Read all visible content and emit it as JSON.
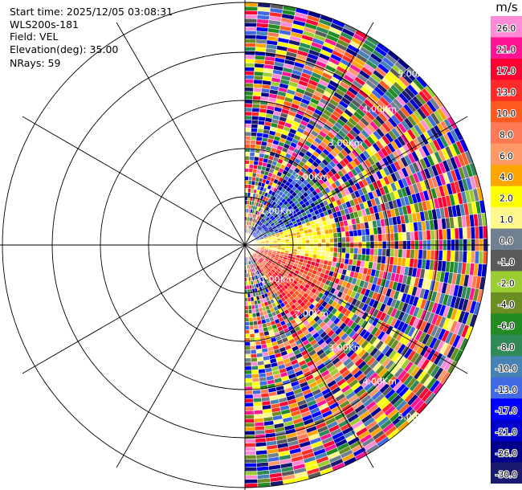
{
  "header": {
    "start_time": "Start time: 2025/12/05 03:08:31",
    "instrument": "WLS200s-181",
    "field": "Field: VEL",
    "elevation": "Elevation(deg): 35.00",
    "nrays": "NRays: 59"
  },
  "range_labels": [
    "1.00Km",
    "2.00Km",
    "3.00Km",
    "4.00Km",
    "5.00Km"
  ],
  "colorbar": {
    "unit": "m/s",
    "ticks": [
      "26.0",
      "21.0",
      "17.0",
      "13.0",
      "10.0",
      "8.0",
      "6.0",
      "4.0",
      "2.0",
      "1.0",
      "0.0",
      "-1.0",
      "-2.0",
      "-4.0",
      "-6.0",
      "-8.0",
      "-10.0",
      "-13.0",
      "-17.0",
      "-21.0",
      "-26.0",
      "-30.0"
    ],
    "colors": [
      "#ff8ad8",
      "#ff1493",
      "#ff0033",
      "#ff2a2a",
      "#ff5a1f",
      "#ff7a55",
      "#ff9966",
      "#ffa500",
      "#ffff00",
      "#fff88a",
      "#708090",
      "#5a5a5a",
      "#9acd32",
      "#6b8e23",
      "#228b22",
      "#2e8b57",
      "#4682b4",
      "#4169e1",
      "#0000ff",
      "#0000cd",
      "#00008b",
      "#191970"
    ]
  }
}
